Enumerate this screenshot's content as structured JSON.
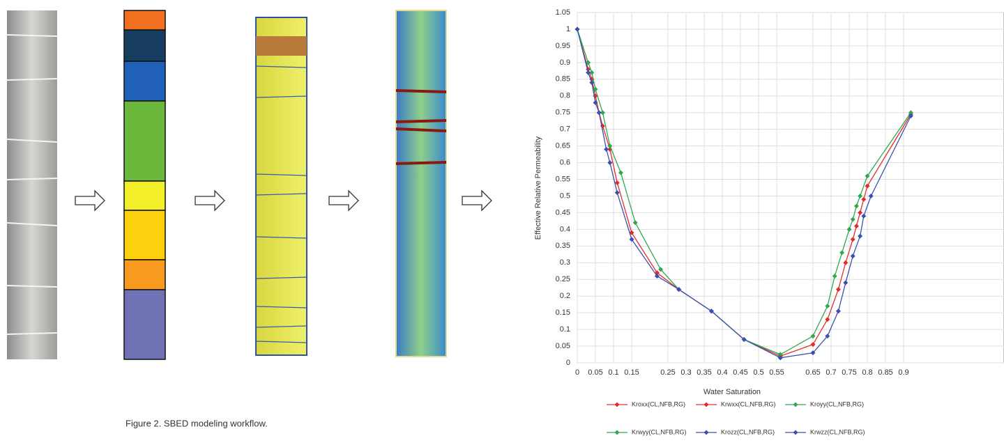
{
  "caption": "Figure 2. SBED modeling workflow.",
  "chart_data": {
    "type": "line",
    "title": null,
    "xlabel": "Water Saturation",
    "ylabel": "Effective Relative Permeability",
    "xlim": [
      0,
      1.1
    ],
    "ylim": [
      0,
      1.05
    ],
    "xticks": [
      0,
      0.05,
      0.1,
      0.15,
      0.25,
      0.3,
      0.35,
      0.4,
      0.45,
      0.5,
      0.55,
      0.65,
      0.7,
      0.75,
      0.8,
      0.85,
      0.9
    ],
    "yticks": [
      0,
      0.05,
      0.1,
      0.15,
      0.2,
      0.25,
      0.3,
      0.35,
      0.4,
      0.45,
      0.5,
      0.55,
      0.6,
      0.65,
      0.7,
      0.75,
      0.8,
      0.85,
      0.9,
      0.95,
      1,
      1.05
    ],
    "grid": true,
    "series": [
      {
        "name": "Kroxx(CL,NFB,RG)",
        "color": "#e32b2b",
        "x": [
          0,
          0.03,
          0.04,
          0.05,
          0.06,
          0.07,
          0.09,
          0.11,
          0.15,
          0.22,
          0.28,
          0.37,
          0.46,
          0.56
        ],
        "values": [
          1,
          0.88,
          0.85,
          0.8,
          0.75,
          0.71,
          0.64,
          0.54,
          0.39,
          0.27,
          0.22,
          0.155,
          0.07,
          0.02
        ]
      },
      {
        "name": "Krwxx(CL,NFB,RG)",
        "color": "#e32b2b",
        "x": [
          0.56,
          0.65,
          0.69,
          0.72,
          0.74,
          0.76,
          0.77,
          0.78,
          0.79,
          0.8,
          0.92
        ],
        "values": [
          0.02,
          0.055,
          0.13,
          0.22,
          0.3,
          0.37,
          0.41,
          0.45,
          0.49,
          0.53,
          0.745
        ]
      },
      {
        "name": "Kroyy(CL,NFB,RG)",
        "color": "#2fa84f",
        "x": [
          0,
          0.03,
          0.04,
          0.05,
          0.07,
          0.09,
          0.12,
          0.16,
          0.23,
          0.28,
          0.37,
          0.46,
          0.56
        ],
        "values": [
          1,
          0.9,
          0.87,
          0.82,
          0.75,
          0.65,
          0.57,
          0.42,
          0.28,
          0.22,
          0.155,
          0.07,
          0.025
        ]
      },
      {
        "name": "Krwyy(CL,NFB,RG)",
        "color": "#2fa84f",
        "x": [
          0.56,
          0.65,
          0.69,
          0.71,
          0.73,
          0.75,
          0.76,
          0.77,
          0.78,
          0.8,
          0.92
        ],
        "values": [
          0.025,
          0.08,
          0.17,
          0.26,
          0.33,
          0.4,
          0.43,
          0.47,
          0.5,
          0.56,
          0.75
        ]
      },
      {
        "name": "Krozz(CL,NFB,RG)",
        "color": "#3a4fb0",
        "x": [
          0,
          0.03,
          0.04,
          0.05,
          0.06,
          0.08,
          0.09,
          0.11,
          0.15,
          0.22,
          0.28,
          0.37,
          0.46,
          0.56
        ],
        "values": [
          1,
          0.87,
          0.84,
          0.78,
          0.75,
          0.64,
          0.6,
          0.51,
          0.37,
          0.26,
          0.22,
          0.155,
          0.07,
          0.015
        ]
      },
      {
        "name": "Krwzz(CL,NFB,RG)",
        "color": "#3a4fb0",
        "x": [
          0.56,
          0.65,
          0.69,
          0.72,
          0.74,
          0.76,
          0.78,
          0.79,
          0.81,
          0.92
        ],
        "values": [
          0.015,
          0.03,
          0.08,
          0.155,
          0.24,
          0.32,
          0.38,
          0.44,
          0.5,
          0.74
        ]
      }
    ]
  }
}
